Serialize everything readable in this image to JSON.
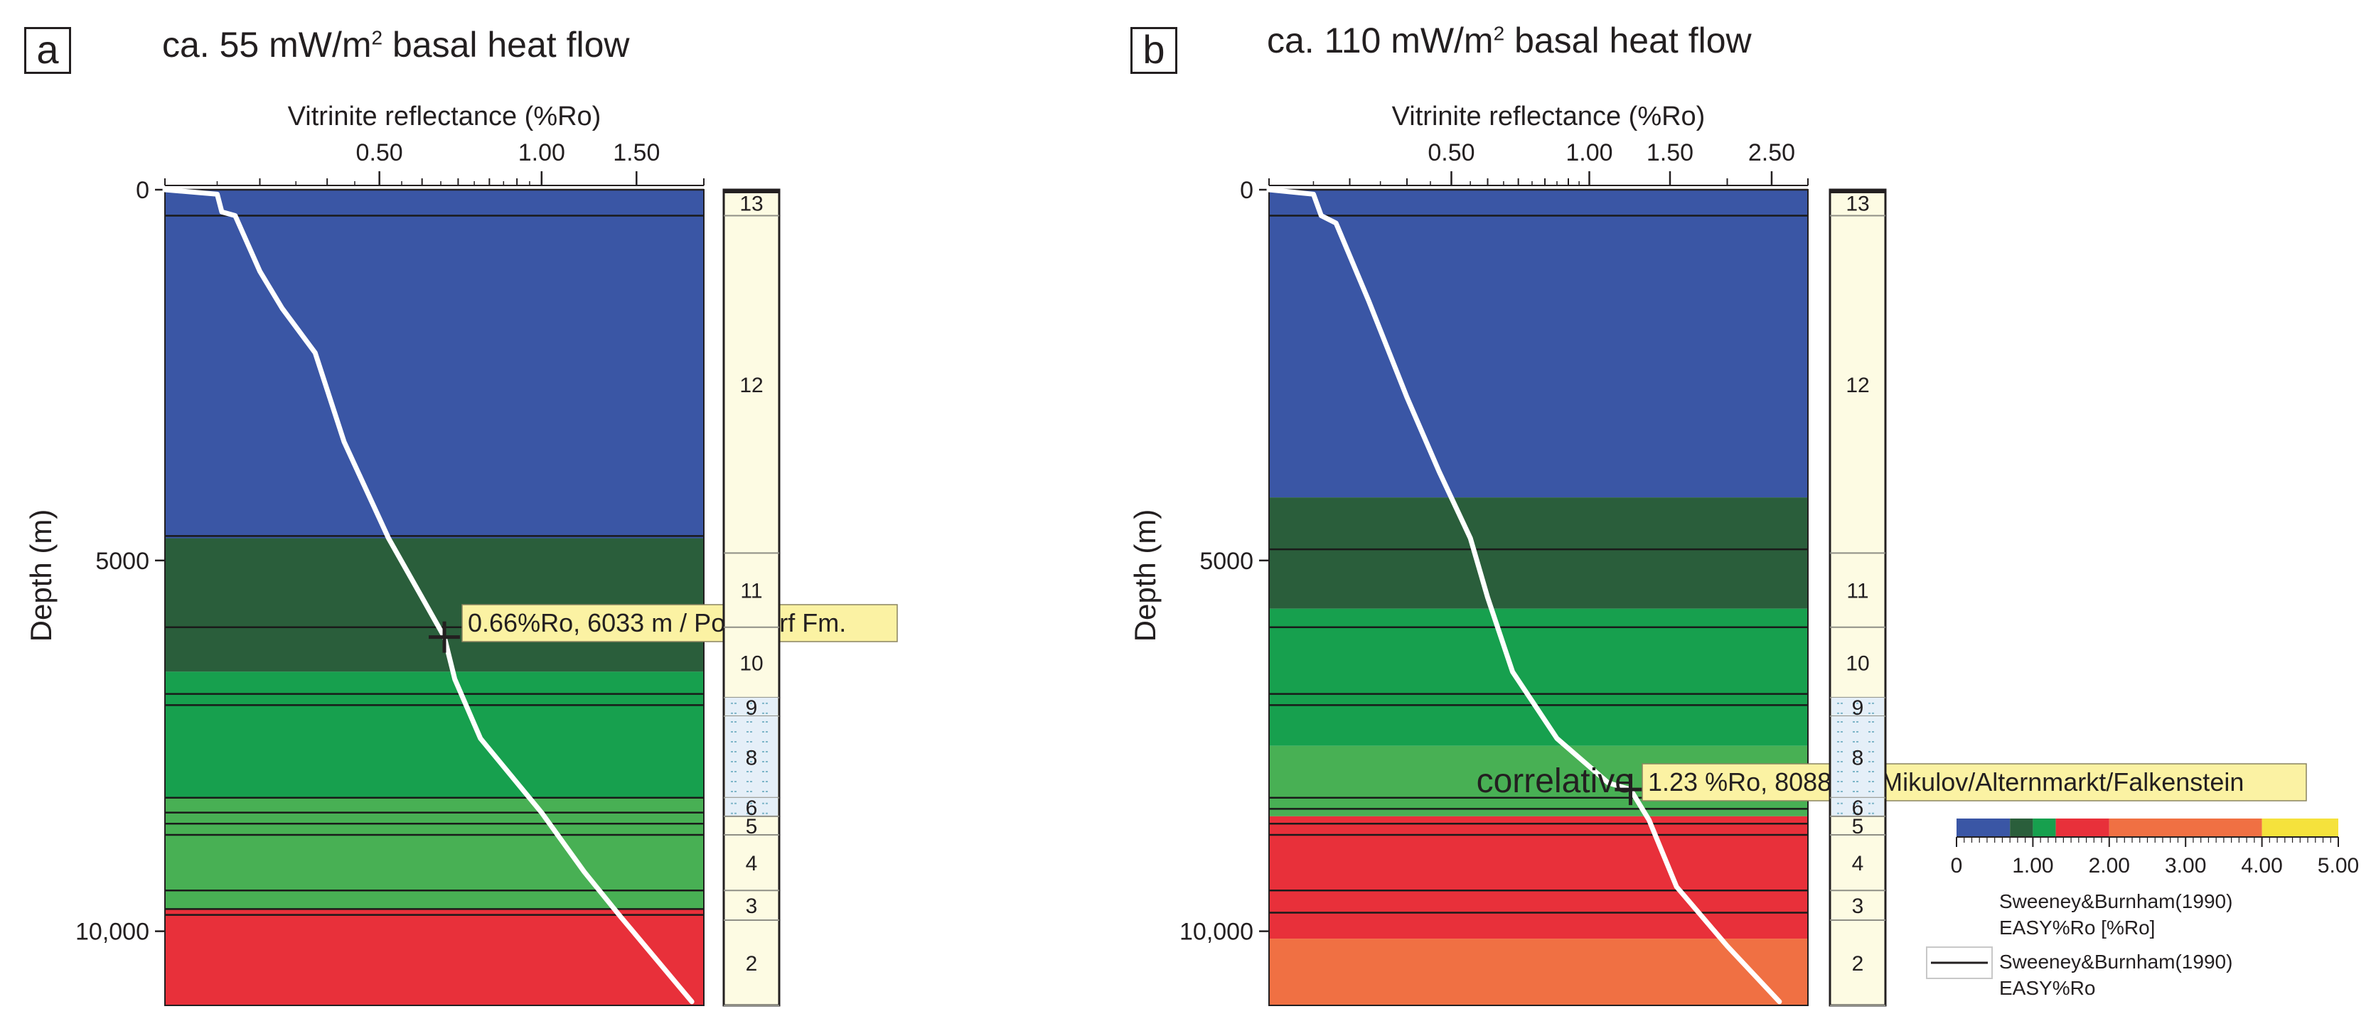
{
  "panels": [
    {
      "letter": "a",
      "title_pre": "ca. 55 mW/m",
      "title_sup": "2",
      "title_post": " basal heat flow",
      "xlabel": "Vitrinite reflectance (%Ro)",
      "ylabel": "Depth (m)",
      "annotation": "0.66%Ro, 6033 m / Poysdorf Fm.",
      "prefix": ""
    },
    {
      "letter": "b",
      "title_pre": "ca. 110 mW/m",
      "title_sup": "2",
      "title_post": " basal heat flow",
      "xlabel": "Vitrinite reflectance (%Ro)",
      "ylabel": "Depth (m)",
      "annotation": "1.23 %Ro, 8088 m / Mikulov/Alternmarkt/Falkenstein",
      "prefix": "correlative"
    }
  ],
  "legend": {
    "colorbar_ticks": [
      "0",
      "1.00",
      "2.00",
      "3.00",
      "4.00",
      "5.00"
    ],
    "colorbar_stops": [
      {
        "from": 0,
        "to": 0.7,
        "color": "#3a56a5"
      },
      {
        "from": 0.7,
        "to": 1.0,
        "color": "#2a5e3b"
      },
      {
        "from": 1.0,
        "to": 1.3,
        "color": "#17a04e"
      },
      {
        "from": 1.3,
        "to": 2.0,
        "color": "#e8303a"
      },
      {
        "from": 2.0,
        "to": 4.0,
        "color": "#f07043"
      },
      {
        "from": 4.0,
        "to": 5.0,
        "color": "#f5e23c"
      }
    ],
    "colorbar_title_1": "Sweeney&Burnham(1990)",
    "colorbar_title_2": "EASY%Ro [%Ro]",
    "line_label_1": "Sweeney&Burnham(1990)",
    "line_label_2": "EASY%Ro"
  },
  "chart_data": [
    {
      "type": "line",
      "title": "ca. 55 mW/m2 basal heat flow",
      "xlabel": "Vitrinite reflectance (%Ro)",
      "ylabel": "Depth (m)",
      "x_scale": "log",
      "xlim": [
        0.2,
        2.0
      ],
      "ylim": [
        11000,
        0
      ],
      "x_ticks": [
        0.5,
        1.0,
        1.5
      ],
      "x_tick_labels": [
        "0.50",
        "1.00",
        "1.50"
      ],
      "y_ticks": [
        0,
        5000,
        10000
      ],
      "y_tick_labels": [
        "0",
        "5000",
        "10,000"
      ],
      "series": [
        {
          "values": [
            [
              0.2,
              0
            ],
            [
              0.25,
              60
            ],
            [
              0.255,
              300
            ],
            [
              0.27,
              350
            ],
            [
              0.3,
              1100
            ],
            [
              0.33,
              1600
            ],
            [
              0.38,
              2200
            ],
            [
              0.43,
              3400
            ],
            [
              0.52,
              4700
            ],
            [
              0.6,
              5500
            ],
            [
              0.66,
              6033
            ],
            [
              0.69,
              6600
            ],
            [
              0.77,
              7400
            ],
            [
              1.0,
              8400
            ],
            [
              1.2,
              9200
            ],
            [
              1.4,
              9800
            ],
            [
              1.9,
              10950
            ]
          ]
        }
      ],
      "fill_bands_depth": [
        {
          "top": 0,
          "bottom": 4700,
          "color": "#3a56a5"
        },
        {
          "top": 4700,
          "bottom": 6500,
          "color": "#2a5e3b"
        },
        {
          "top": 6500,
          "bottom": 8200,
          "color": "#17a04e"
        },
        {
          "top": 8200,
          "bottom": 9700,
          "color": "#48b054"
        },
        {
          "top": 9700,
          "bottom": 11000,
          "color": "#e8303a"
        }
      ],
      "horizons_depth": [
        0,
        350,
        4670,
        5900,
        6800,
        6950,
        8200,
        8400,
        8550,
        8700,
        9450,
        9700,
        9780
      ],
      "annotation_point": {
        "x": 0.66,
        "y": 6033,
        "label": "0.66%Ro, 6033 m / Poysdorf Fm."
      },
      "strat_column": [
        {
          "label": "13",
          "top": 0,
          "bottom": 350
        },
        {
          "label": "12",
          "top": 350,
          "bottom": 4900
        },
        {
          "label": "11",
          "top": 4900,
          "bottom": 5900
        },
        {
          "label": "10",
          "top": 5900,
          "bottom": 6850
        },
        {
          "label": "9",
          "top": 6850,
          "bottom": 7100
        },
        {
          "label": "8",
          "top": 7100,
          "bottom": 8200
        },
        {
          "label": "6",
          "top": 8200,
          "bottom": 8450
        },
        {
          "label": "5",
          "top": 8450,
          "bottom": 8700
        },
        {
          "label": "4",
          "top": 8700,
          "bottom": 9450
        },
        {
          "label": "3",
          "top": 9450,
          "bottom": 9850
        },
        {
          "label": "2",
          "top": 9850,
          "bottom": 11000
        }
      ]
    },
    {
      "type": "line",
      "title": "ca. 110 mW/m2 basal heat flow",
      "xlabel": "Vitrinite reflectance (%Ro)",
      "ylabel": "Depth (m)",
      "x_scale": "log",
      "xlim": [
        0.2,
        3.0
      ],
      "ylim": [
        11000,
        0
      ],
      "x_ticks": [
        0.5,
        1.0,
        1.5,
        2.5
      ],
      "x_tick_labels": [
        "0.50",
        "1.00",
        "1.50",
        "2.50"
      ],
      "y_ticks": [
        0,
        5000,
        10000
      ],
      "y_tick_labels": [
        "0",
        "5000",
        "10,000"
      ],
      "series": [
        {
          "values": [
            [
              0.2,
              0
            ],
            [
              0.25,
              60
            ],
            [
              0.26,
              350
            ],
            [
              0.28,
              450
            ],
            [
              0.33,
              1500
            ],
            [
              0.4,
              2800
            ],
            [
              0.47,
              3800
            ],
            [
              0.55,
              4700
            ],
            [
              0.6,
              5500
            ],
            [
              0.68,
              6500
            ],
            [
              0.85,
              7400
            ],
            [
              1.1,
              8000
            ],
            [
              1.23,
              8088
            ],
            [
              1.35,
              8500
            ],
            [
              1.55,
              9400
            ],
            [
              2.0,
              10200
            ],
            [
              2.6,
              10950
            ]
          ]
        }
      ],
      "fill_bands_depth": [
        {
          "top": 0,
          "bottom": 4150,
          "color": "#3a56a5"
        },
        {
          "top": 4150,
          "bottom": 5650,
          "color": "#2a5e3b"
        },
        {
          "top": 5650,
          "bottom": 7500,
          "color": "#17a04e"
        },
        {
          "top": 7500,
          "bottom": 8450,
          "color": "#48b054"
        },
        {
          "top": 8450,
          "bottom": 10100,
          "color": "#e8303a"
        },
        {
          "top": 10100,
          "bottom": 11000,
          "color": "#f07043"
        }
      ],
      "horizons_depth": [
        0,
        350,
        4850,
        5900,
        6800,
        6950,
        8200,
        8350,
        8550,
        8700,
        9450,
        9750
      ],
      "annotation_point": {
        "x": 1.23,
        "y": 8088,
        "label": "1.23 %Ro, 8088 m / Mikulov/Alternmarkt/Falkenstein"
      },
      "strat_column": [
        {
          "label": "13",
          "top": 0,
          "bottom": 350
        },
        {
          "label": "12",
          "top": 350,
          "bottom": 4900
        },
        {
          "label": "11",
          "top": 4900,
          "bottom": 5900
        },
        {
          "label": "10",
          "top": 5900,
          "bottom": 6850
        },
        {
          "label": "9",
          "top": 6850,
          "bottom": 7100
        },
        {
          "label": "8",
          "top": 7100,
          "bottom": 8200
        },
        {
          "label": "6",
          "top": 8200,
          "bottom": 8450
        },
        {
          "label": "5",
          "top": 8450,
          "bottom": 8700
        },
        {
          "label": "4",
          "top": 8700,
          "bottom": 9450
        },
        {
          "label": "3",
          "top": 9450,
          "bottom": 9850
        },
        {
          "label": "2",
          "top": 9850,
          "bottom": 11000
        }
      ]
    }
  ]
}
